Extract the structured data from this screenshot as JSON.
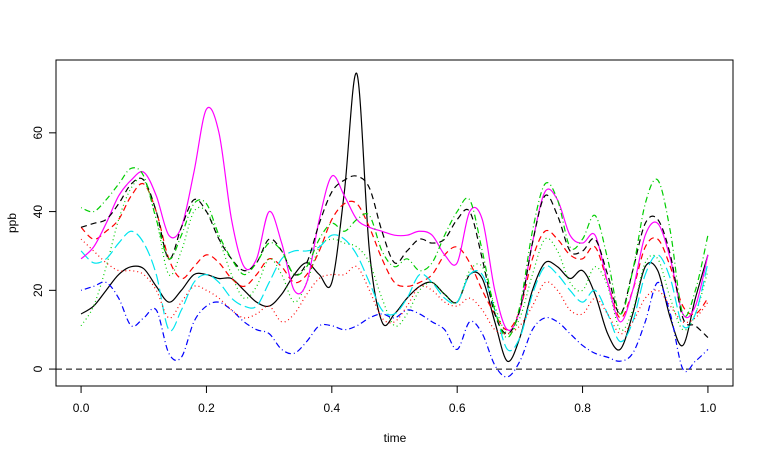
{
  "chart_data": {
    "type": "line",
    "x_label": "time",
    "y_label": "ppb",
    "x": [
      0,
      0.02,
      0.04,
      0.06,
      0.08,
      0.1,
      0.12,
      0.14,
      0.16,
      0.18,
      0.2,
      0.22,
      0.24,
      0.26,
      0.28,
      0.3,
      0.32,
      0.34,
      0.36,
      0.38,
      0.4,
      0.42,
      0.44,
      0.46,
      0.48,
      0.5,
      0.52,
      0.54,
      0.56,
      0.58,
      0.6,
      0.62,
      0.64,
      0.66,
      0.68,
      0.7,
      0.72,
      0.74,
      0.76,
      0.78,
      0.8,
      0.82,
      0.84,
      0.86,
      0.88,
      0.9,
      0.92,
      0.94,
      0.96,
      0.98,
      1
    ],
    "series": [
      {
        "color": "#000000",
        "linestyle": "solid",
        "values": [
          14,
          16,
          20,
          24,
          26,
          25.5,
          21,
          17,
          20,
          24,
          24,
          23,
          23,
          20,
          17,
          16,
          19,
          24,
          27,
          24,
          22,
          45,
          75,
          30,
          12,
          14,
          18,
          21,
          22,
          19,
          17,
          24,
          23,
          12,
          2,
          8,
          20,
          27,
          26,
          23,
          25,
          19,
          9,
          5,
          14,
          26,
          25,
          13,
          6,
          18,
          29
        ]
      },
      {
        "color": "#FF0000",
        "linestyle": "dashed",
        "values": [
          36,
          33,
          35,
          38,
          44,
          47,
          40,
          28,
          23,
          26,
          29,
          27,
          23,
          21,
          24,
          28,
          26,
          22,
          24,
          30,
          38,
          42,
          42,
          36,
          28,
          22,
          21,
          22,
          24,
          29,
          31,
          27,
          20,
          14,
          10,
          15,
          28,
          35,
          33,
          29,
          28,
          31,
          22,
          13,
          20,
          31,
          33,
          26,
          16,
          14,
          18
        ]
      },
      {
        "color": "#00CD00",
        "linestyle": "dotted",
        "values": [
          11,
          16,
          26,
          38,
          46,
          48,
          38,
          24,
          30,
          40,
          40,
          33,
          24,
          18,
          21,
          28,
          24,
          17,
          22,
          31,
          33,
          32,
          31,
          27,
          18,
          11,
          14,
          20,
          22,
          19,
          17,
          25,
          26,
          16,
          9,
          13,
          24,
          33,
          30,
          22,
          20,
          26,
          21,
          10,
          15,
          27,
          28,
          18,
          10,
          14,
          25
        ]
      },
      {
        "color": "#0000FF",
        "linestyle": "dotdash",
        "values": [
          20,
          21,
          22,
          18,
          11,
          13,
          15,
          4,
          3,
          12,
          16,
          17,
          15,
          12,
          10,
          9,
          5,
          4,
          7,
          11,
          11,
          10,
          11,
          13,
          14,
          13,
          15,
          14,
          12,
          10,
          5,
          12,
          9,
          1,
          -2,
          2,
          10,
          13,
          12,
          9,
          6,
          4,
          3,
          2,
          4,
          12,
          22,
          14,
          0,
          2,
          5
        ]
      },
      {
        "color": "#00E5EE",
        "linestyle": "longdash",
        "values": [
          30,
          27,
          28,
          32,
          35,
          32,
          24,
          10,
          15,
          22,
          24,
          22,
          18,
          16,
          16,
          22,
          28,
          30,
          30,
          31,
          34,
          33,
          29,
          22,
          15,
          14,
          18,
          24,
          22,
          18,
          17,
          24,
          24,
          15,
          5,
          8,
          19,
          26,
          24,
          20,
          17,
          20,
          14,
          7,
          12,
          24,
          29,
          23,
          11,
          14,
          27
        ]
      },
      {
        "color": "#FF00FF",
        "linestyle": "solid",
        "values": [
          28,
          31,
          37,
          44,
          48,
          50,
          44,
          34,
          36,
          50,
          66,
          60,
          38,
          26,
          28,
          40,
          32,
          20,
          22,
          38,
          49,
          44,
          38,
          36,
          35,
          34,
          34,
          35,
          34,
          29,
          27,
          40,
          38,
          20,
          10,
          15,
          32,
          45,
          43,
          34,
          32,
          34,
          22,
          12,
          20,
          34,
          37,
          28,
          14,
          16,
          29
        ]
      },
      {
        "color": "#000000",
        "linestyle": "dashed",
        "values": [
          36,
          37,
          38,
          42,
          47,
          48,
          40,
          28,
          36,
          43,
          40,
          33,
          28,
          25,
          27,
          33,
          30,
          24,
          27,
          37,
          45,
          48,
          49,
          46,
          35,
          27,
          30,
          33,
          32,
          33,
          38,
          40,
          28,
          14,
          9,
          15,
          32,
          44,
          39,
          30,
          30,
          33,
          24,
          14,
          25,
          37,
          38,
          29,
          13,
          11,
          8
        ]
      },
      {
        "color": "#FF0000",
        "linestyle": "dotted",
        "values": [
          33,
          30,
          27,
          25,
          25,
          24,
          20,
          13,
          17,
          21,
          20,
          18,
          15,
          13,
          14,
          16,
          12,
          14,
          19,
          23,
          24,
          24,
          26,
          20,
          13,
          12,
          16,
          21,
          20,
          17,
          16,
          18,
          15,
          10,
          9,
          11,
          16,
          22,
          20,
          15,
          14,
          18,
          14,
          9,
          12,
          18,
          20,
          16,
          12,
          13,
          17
        ]
      },
      {
        "color": "#00CD00",
        "linestyle": "dotdash",
        "values": [
          41,
          40,
          43,
          47,
          51,
          49,
          38,
          28,
          34,
          42,
          42,
          34,
          28,
          24,
          27,
          32,
          30,
          24,
          26,
          33,
          37,
          35,
          38,
          39,
          30,
          26,
          28,
          25,
          27,
          34,
          40,
          43,
          30,
          15,
          8,
          16,
          35,
          47,
          43,
          31,
          33,
          39,
          28,
          14,
          25,
          42,
          48,
          35,
          14,
          20,
          34
        ]
      }
    ],
    "hline": 0,
    "xlim": [
      -0.04,
      1.04
    ],
    "ylim": [
      -4.3,
      78.5
    ],
    "xticks": [
      {
        "value": 0,
        "label": "0.0"
      },
      0.2,
      0.4,
      0.6,
      0.8,
      {
        "value": 1,
        "label": "1.0"
      }
    ],
    "yticks": [
      0,
      20,
      40,
      60
    ]
  }
}
